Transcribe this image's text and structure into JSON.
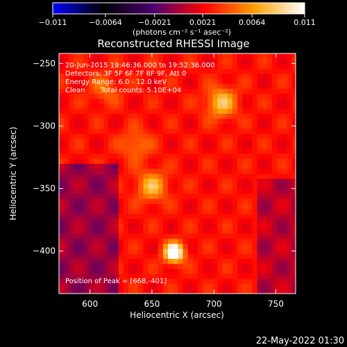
{
  "chart_data": {
    "type": "heatmap",
    "title": "Reconstructed RHESSI Image",
    "xlabel": "Heliocentric X (arcsec)",
    "ylabel": "Heliocentric Y (arcsec)",
    "xlim": [
      575,
      766
    ],
    "ylim": [
      -434,
      -242
    ],
    "x_ticks": [
      600,
      650,
      700,
      750
    ],
    "y_ticks": [
      -250,
      -300,
      -350,
      -400
    ],
    "x_tick_labels": [
      "600",
      "650",
      "700",
      "750"
    ],
    "y_tick_labels": [
      "−250",
      "−300",
      "−350",
      "−400"
    ],
    "colorbar": {
      "min": -0.011,
      "max": 0.011,
      "ticks": [
        -0.011,
        -0.0064,
        -0.0021,
        0.0021,
        0.0064,
        0.011
      ],
      "tick_labels": [
        "−0.011",
        "−0.0064",
        "−0.0021",
        "0.0021",
        "0.0064",
        "0.011"
      ],
      "unit_label": "(photons cm⁻² s⁻¹ asec⁻²)",
      "colormap": [
        "#0000ff",
        "#000000",
        "#4b0072",
        "#ff0000",
        "#ffa000",
        "#ffffff"
      ]
    },
    "annotations": [
      "20-Jun-2015 19:46:36.000 to 19:52:36.000",
      "Detectors: 3F 5F 6F 7F 8F 9F, Att 0",
      "Energy Range: 6.0 - 12.0 keV",
      "Clean",
      "Total counts: 5.10E+04"
    ],
    "peak_label": "Position of Peak = [668,-401]",
    "peak_position": [
      668,
      -401
    ],
    "sources": [
      {
        "x": 668,
        "y": -401,
        "amplitude": 0.011
      },
      {
        "x": 706,
        "y": -281,
        "amplitude": 0.0055
      },
      {
        "x": 650,
        "y": -348,
        "amplitude": 0.005
      },
      {
        "x": 637,
        "y": -315,
        "amplitude": 0.003
      },
      {
        "x": 612,
        "y": -270,
        "amplitude": 0.0025
      }
    ]
  },
  "footer": {
    "timestamp": "22-May-2022 01:30"
  }
}
